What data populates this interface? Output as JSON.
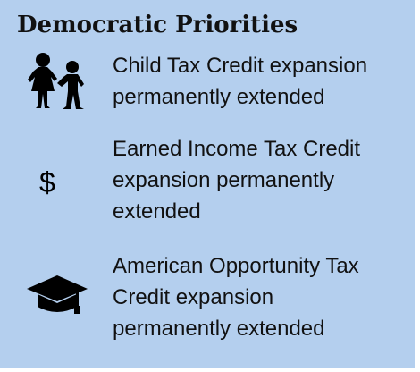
{
  "panel": {
    "title": "Democratic Priorities",
    "background": "#b4cfee",
    "items": [
      {
        "icon": "children-icon",
        "lines": [
          "Child Tax Credit expansion",
          "permanently extended"
        ]
      },
      {
        "icon": "dollar-sign-icon",
        "icon_text": "$",
        "lines": [
          "Earned Income Tax Credit",
          "expansion permanently",
          "extended"
        ]
      },
      {
        "icon": "graduation-cap-icon",
        "lines": [
          "American Opportunity Tax",
          "Credit expansion",
          "permanently extended"
        ]
      }
    ]
  }
}
